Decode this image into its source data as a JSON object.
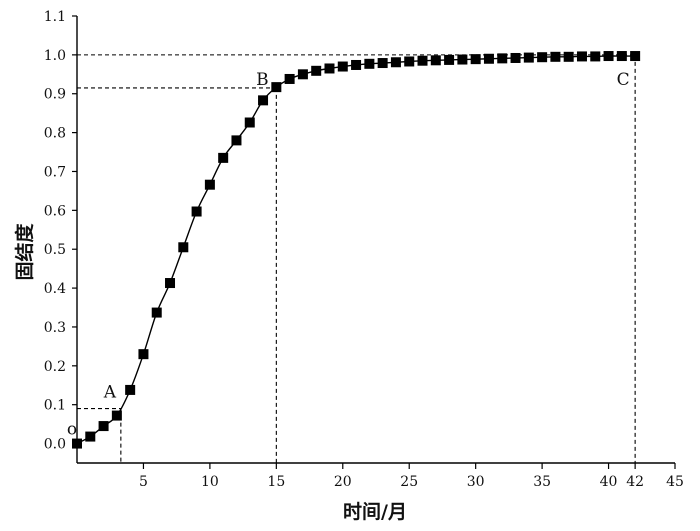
{
  "chart_data": {
    "type": "line",
    "title": "",
    "xlabel": "时间/月",
    "ylabel": "固结度",
    "xlim": [
      0,
      45
    ],
    "ylim": [
      -0.05,
      1.1
    ],
    "x_ticks": [
      5,
      10,
      15,
      20,
      25,
      30,
      35,
      40,
      45
    ],
    "x_tick_labels": [
      "5",
      "10",
      "15",
      "20",
      "25",
      "30",
      "35",
      "40",
      "45"
    ],
    "extra_x_tick": {
      "value": 42,
      "label": "42"
    },
    "y_ticks": [
      0.0,
      0.1,
      0.2,
      0.3,
      0.4,
      0.5,
      0.6,
      0.7,
      0.8,
      0.9,
      1.0,
      1.1
    ],
    "y_tick_labels": [
      "0.0",
      "0.1",
      "0.2",
      "0.3",
      "0.4",
      "0.5",
      "0.6",
      "0.7",
      "0.8",
      "0.9",
      "1.0",
      "1.1"
    ],
    "grid": false,
    "series": [
      {
        "name": "",
        "marker": "square",
        "color": "#000000",
        "x": [
          0,
          1,
          2,
          3,
          4,
          5,
          6,
          7,
          8,
          9,
          10,
          11,
          12,
          13,
          14,
          15,
          16,
          17,
          18,
          19,
          20,
          21,
          22,
          23,
          24,
          25,
          26,
          27,
          28,
          29,
          30,
          31,
          32,
          33,
          34,
          35,
          36,
          37,
          38,
          39,
          40,
          41,
          42
        ],
        "values": [
          0.0,
          0.018,
          0.045,
          0.072,
          0.138,
          0.23,
          0.337,
          0.413,
          0.505,
          0.597,
          0.666,
          0.735,
          0.78,
          0.826,
          0.883,
          0.917,
          0.938,
          0.95,
          0.959,
          0.965,
          0.97,
          0.974,
          0.977,
          0.979,
          0.981,
          0.983,
          0.985,
          0.986,
          0.987,
          0.988,
          0.989,
          0.99,
          0.991,
          0.992,
          0.993,
          0.994,
          0.995,
          0.995,
          0.996,
          0.996,
          0.997,
          0.997,
          0.997
        ]
      }
    ],
    "reference_points": [
      {
        "label": "o",
        "x": 0,
        "y": 0.0
      },
      {
        "label": "A",
        "x": 3.3,
        "y": 0.09
      },
      {
        "label": "B",
        "x": 15,
        "y": 0.915
      },
      {
        "label": "C",
        "x": 42,
        "y": 1.0
      }
    ]
  }
}
